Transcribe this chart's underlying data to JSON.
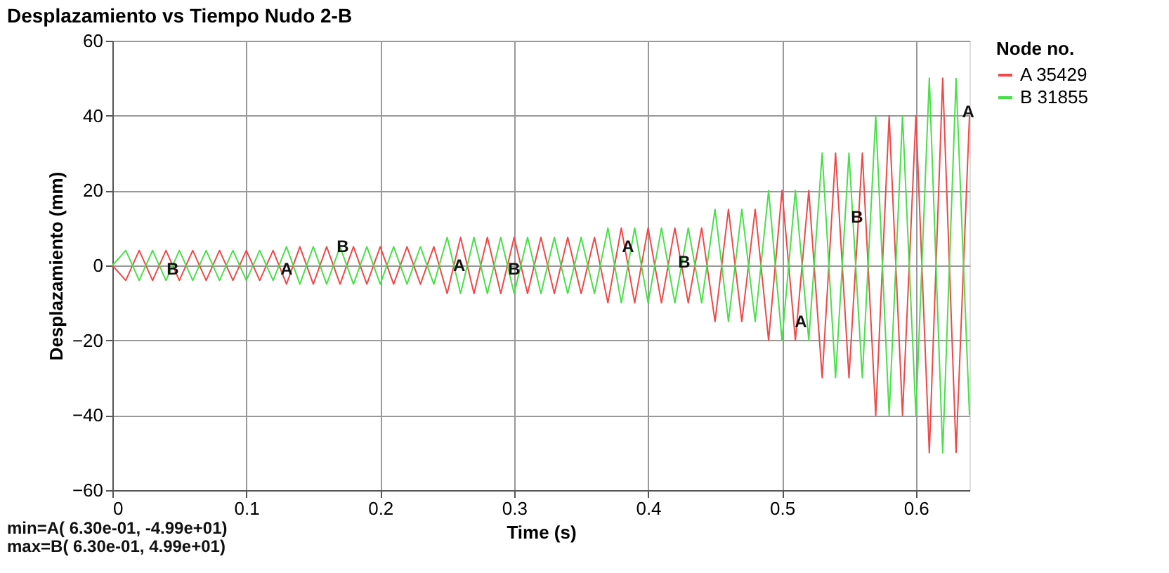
{
  "chart_data": {
    "type": "line",
    "title": "Desplazamiento vs Tiempo Nudo 2-B",
    "xlabel": "Time (s)",
    "ylabel": "Desplazamiento (mm)",
    "legend_title": "Node no.",
    "x": [
      0,
      0.01,
      0.02,
      0.03,
      0.04,
      0.05,
      0.06,
      0.07,
      0.08,
      0.09,
      0.1,
      0.11,
      0.12,
      0.13,
      0.14,
      0.15,
      0.16,
      0.17,
      0.18,
      0.19,
      0.2,
      0.21,
      0.22,
      0.23,
      0.24,
      0.25,
      0.26,
      0.27,
      0.28,
      0.29,
      0.3,
      0.31,
      0.32,
      0.33,
      0.34,
      0.35,
      0.36,
      0.37,
      0.38,
      0.39,
      0.4,
      0.41,
      0.42,
      0.43,
      0.44,
      0.45,
      0.46,
      0.47,
      0.48,
      0.49,
      0.5,
      0.51,
      0.52,
      0.53,
      0.54,
      0.55,
      0.56,
      0.57,
      0.58,
      0.59,
      0.6,
      0.61,
      0.62,
      0.63,
      0.64
    ],
    "series": [
      {
        "name": "A  35429",
        "color": "#f04848",
        "values": [
          0,
          -4,
          4,
          -4,
          4,
          -4,
          4,
          -4,
          4,
          -4,
          4,
          -4,
          4,
          -5,
          5,
          -5,
          5,
          -5,
          5,
          -5,
          5,
          -5,
          5,
          -5,
          5,
          -7.5,
          7.5,
          -7.5,
          7.5,
          -7.5,
          7.5,
          -7.5,
          7.5,
          -7.5,
          7.5,
          -7.5,
          7.5,
          -10,
          10,
          -10,
          10,
          -10,
          10,
          -10,
          10,
          -15,
          15,
          -15,
          15,
          -20,
          20,
          -20,
          20,
          -30,
          30,
          -30,
          30,
          -40,
          40,
          -40,
          40,
          -50,
          50,
          -49.9,
          40
        ]
      },
      {
        "name": "B  31855",
        "color": "#48e048",
        "values": [
          0,
          4,
          -4,
          4,
          -4,
          4,
          -4,
          4,
          -4,
          4,
          -4,
          4,
          -4,
          5,
          -5,
          5,
          -5,
          5,
          -5,
          5,
          -5,
          5,
          -5,
          5,
          -5,
          7.5,
          -7.5,
          7.5,
          -7.5,
          7.5,
          -7.5,
          7.5,
          -7.5,
          7.5,
          -7.5,
          7.5,
          -7.5,
          10,
          -10,
          10,
          -10,
          10,
          -10,
          10,
          -10,
          15,
          -15,
          15,
          -15,
          20,
          -20,
          20,
          -20,
          30,
          -30,
          30,
          -30,
          40,
          -40,
          40,
          -40,
          50,
          -50,
          49.9,
          -40
        ]
      }
    ],
    "xlim": [
      0,
      0.64
    ],
    "xticks": [
      0,
      0.1,
      0.2,
      0.3,
      0.4,
      0.5,
      0.6
    ],
    "ylim": [
      -60,
      60
    ],
    "yticks": [
      -60,
      -40,
      -20,
      0,
      20,
      40,
      60
    ],
    "grid": true,
    "legend": "right",
    "marker": "none",
    "line_style": "solid",
    "annotations": [
      {
        "text": "B",
        "x": 0.045,
        "y": -1
      },
      {
        "text": "A",
        "x": 0.13,
        "y": -1
      },
      {
        "text": "B",
        "x": 0.172,
        "y": 5
      },
      {
        "text": "A",
        "x": 0.259,
        "y": 0
      },
      {
        "text": "B",
        "x": 0.3,
        "y": -1
      },
      {
        "text": "A",
        "x": 0.385,
        "y": 5
      },
      {
        "text": "B",
        "x": 0.427,
        "y": 1
      },
      {
        "text": "A",
        "x": 0.514,
        "y": -15
      },
      {
        "text": "B",
        "x": 0.556,
        "y": 13
      },
      {
        "text": "A",
        "x": 0.639,
        "y": 41
      },
      "min=A(   6.30e-01,   -4.99e+01)",
      "max=B(   6.30e-01,    4.99e+01)"
    ]
  }
}
